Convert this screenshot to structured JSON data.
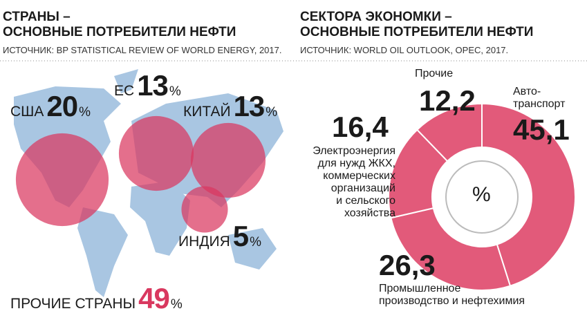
{
  "chart_data": [
    {
      "type": "bubble",
      "title": "СТРАНЫ –\nОСНОВНЫЕ ПОТРЕБИТЕЛИ НЕФТИ",
      "subtitle": "ИСТОЧНИК: BP STATISTICAL REVIEW OF WORLD ENERGY, 2017.",
      "categories": [
        "США",
        "ЕС",
        "КИТАЙ",
        "ИНДИЯ",
        "ПРОЧИЕ СТРАНЫ"
      ],
      "values": [
        20,
        13,
        13,
        5,
        49
      ],
      "unit": "%",
      "color": "#d9385f"
    },
    {
      "type": "donut",
      "title": "СЕКТОРА ЭКОНОМКИ –\nОСНОВНЫЕ ПОТРЕБИТЕЛИ НЕФТИ",
      "subtitle": "ИСТОЧНИК: WORLD OIL OUTLOOK, OPEC, 2017.",
      "categories": [
        "Авто-\nтранспорт",
        "Промышленное\nпроизводство и нефтехимия",
        "Электроэнергия\nдля нужд ЖКХ,\nкоммерческих\nорганизаций\nи сельского\nхозяйства",
        "Прочие"
      ],
      "values": [
        45.1,
        26.3,
        16.4,
        12.2
      ],
      "value_labels": [
        "45,1",
        "26,3",
        "16,4",
        "12,2"
      ],
      "unit": "%",
      "color": "#e25a7a"
    }
  ]
}
